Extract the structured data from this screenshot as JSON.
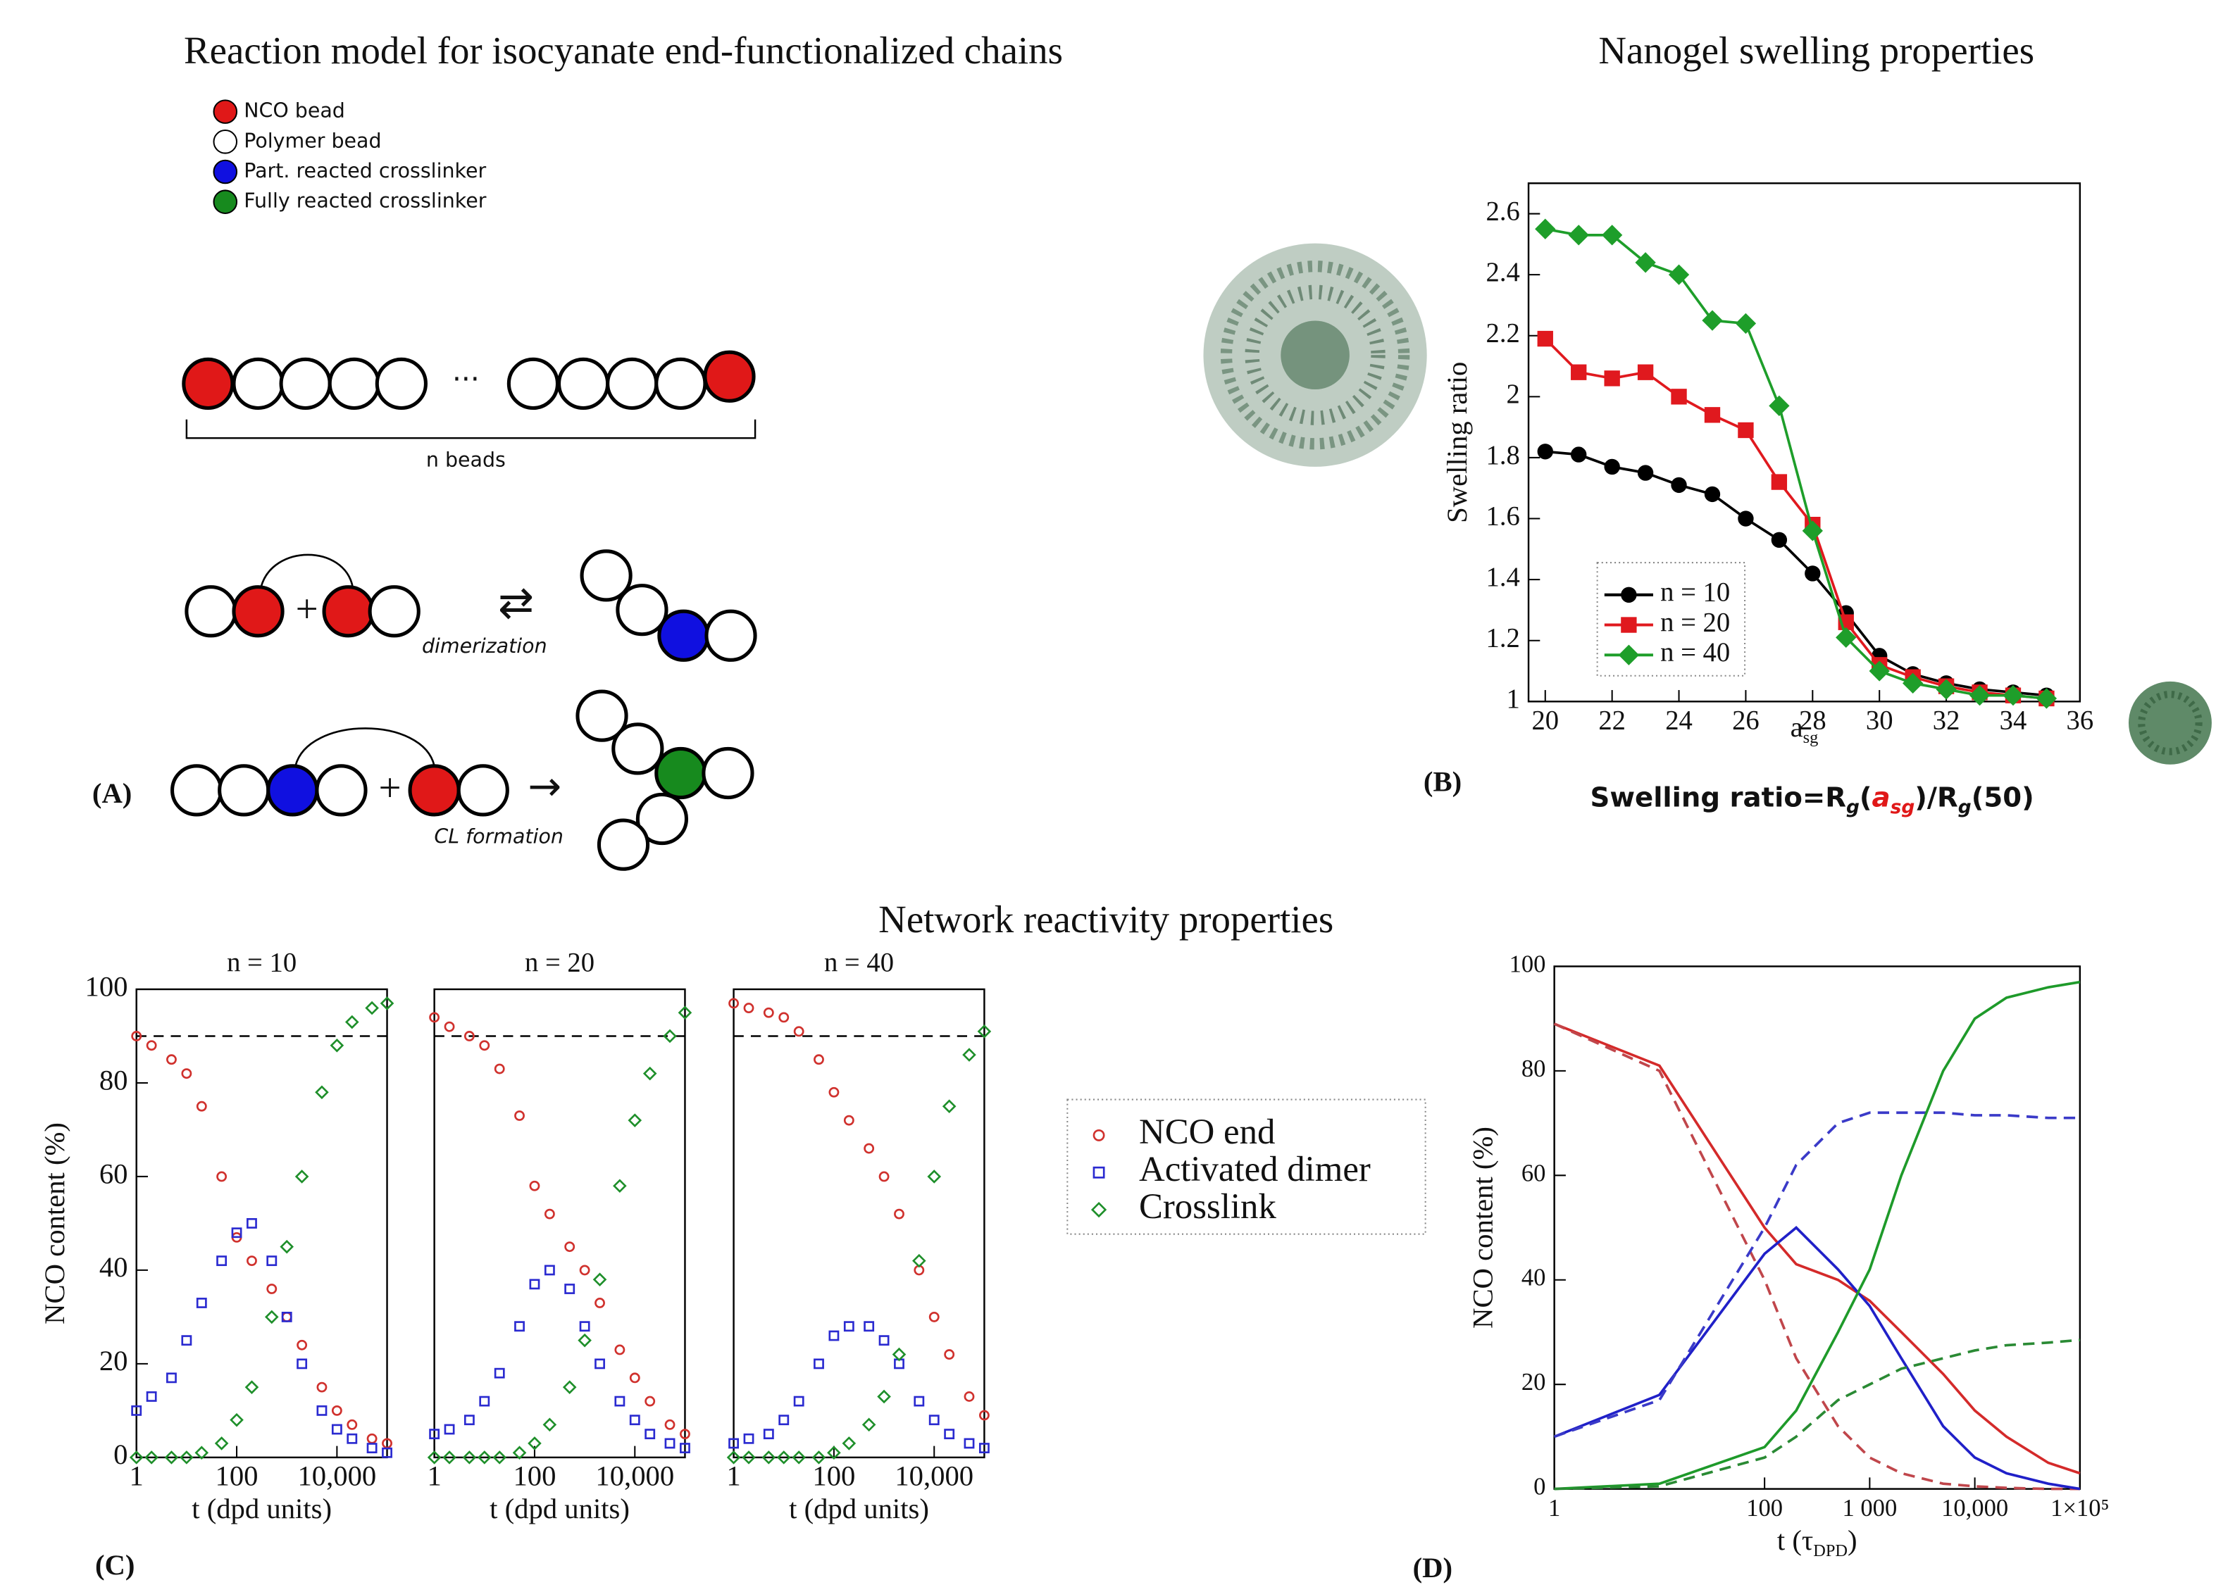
{
  "panel_a": {
    "title": "Reaction model for isocyanate end-functionalized chains",
    "legend": [
      "NCO bead",
      "Polymer bead",
      "Part. reacted crosslinker",
      "Fully reacted crosslinker"
    ],
    "ellipsis": "···",
    "chain_label": "n beads",
    "reaction_1": "dimerization",
    "reaction_2": "CL formation",
    "plus": "+",
    "equilibrium": "⇄",
    "arrow": "→",
    "label": "(A)"
  },
  "panel_b": {
    "title": "Nanogel swelling properties",
    "label": "(B)",
    "formula": [
      "Swelling ratio=R",
      "g",
      "(",
      "a",
      "sg",
      ")/R",
      "g",
      "(50)"
    ]
  },
  "panel_c": {
    "title": "Network reactivity properties",
    "label": "(C)"
  },
  "panel_d": {
    "label": "(D)"
  },
  "chart_data": [
    {
      "type": "line",
      "x": [
        20,
        21,
        22,
        23,
        24,
        25,
        26,
        27,
        28,
        29,
        30,
        31,
        32,
        33,
        34,
        35
      ],
      "series": [
        {
          "name": "n = 10",
          "color": "#000000",
          "marker": "circle",
          "values": [
            1.82,
            1.81,
            1.77,
            1.75,
            1.71,
            1.68,
            1.6,
            1.53,
            1.42,
            1.29,
            1.15,
            1.09,
            1.06,
            1.04,
            1.03,
            1.02
          ]
        },
        {
          "name": "n = 20",
          "color": "#e0191e",
          "marker": "square",
          "values": [
            2.19,
            2.08,
            2.06,
            2.08,
            2.0,
            1.94,
            1.89,
            1.72,
            1.58,
            1.26,
            1.12,
            1.08,
            1.05,
            1.03,
            1.02,
            1.01
          ]
        },
        {
          "name": "n = 40",
          "color": "#1e9e2a",
          "marker": "diamond",
          "values": [
            2.55,
            2.53,
            2.53,
            2.44,
            2.4,
            2.25,
            2.24,
            1.97,
            1.56,
            1.21,
            1.1,
            1.06,
            1.04,
            1.02,
            1.02,
            1.01
          ]
        }
      ],
      "xlim": [
        19.5,
        36
      ],
      "ylim": [
        1,
        2.7
      ],
      "xticks": [
        20,
        22,
        24,
        26,
        28,
        30,
        32,
        34,
        36
      ],
      "yticks": [
        1,
        1.2,
        1.4,
        1.6,
        1.8,
        2,
        2.2,
        2.4,
        2.6
      ],
      "xlabel": [
        "a",
        "sg"
      ],
      "ylabel": "Swelling ratio",
      "legend": "lower left"
    },
    {
      "type": "scatter",
      "title": "n = 10",
      "xscale": "log",
      "hollow": true,
      "reference_line": 90,
      "x": [
        1,
        2,
        5,
        10,
        20,
        50,
        100,
        200,
        500,
        1000,
        2000,
        5000,
        10000,
        20000,
        50000,
        100000
      ],
      "series": [
        {
          "name": "NCO end",
          "color": "#d0312d",
          "marker": "circle",
          "values": [
            90,
            88,
            85,
            82,
            75,
            60,
            47,
            42,
            36,
            30,
            24,
            15,
            10,
            7,
            4,
            3
          ]
        },
        {
          "name": "Activated dimer",
          "color": "#2a2ad0",
          "marker": "square",
          "values": [
            10,
            13,
            17,
            25,
            33,
            42,
            48,
            50,
            42,
            30,
            20,
            10,
            6,
            4,
            2,
            1
          ]
        },
        {
          "name": "Crosslink",
          "color": "#1e8f2a",
          "marker": "diamond",
          "values": [
            0,
            0,
            0,
            0,
            1,
            3,
            8,
            15,
            30,
            45,
            60,
            78,
            88,
            93,
            96,
            97
          ]
        }
      ],
      "xlim": [
        1,
        100000
      ],
      "ylim": [
        0,
        100
      ],
      "xticks": [
        1,
        100,
        {
          "value": 10000,
          "label": "10,000"
        }
      ],
      "yticks": [
        0,
        20,
        40,
        60,
        80,
        100
      ],
      "xlabel": [
        "t (dpd units)"
      ],
      "ylabel": "NCO content (%)",
      "legend": "right"
    },
    {
      "type": "scatter",
      "title": "n = 20",
      "xscale": "log",
      "hollow": true,
      "reference_line": 90,
      "x": [
        1,
        2,
        5,
        10,
        20,
        50,
        100,
        200,
        500,
        1000,
        2000,
        5000,
        10000,
        20000,
        50000,
        100000
      ],
      "series": [
        {
          "color": "#d0312d",
          "marker": "circle",
          "values": [
            94,
            92,
            90,
            88,
            83,
            73,
            58,
            52,
            45,
            40,
            33,
            23,
            17,
            12,
            7,
            5
          ]
        },
        {
          "color": "#2a2ad0",
          "marker": "square",
          "values": [
            5,
            6,
            8,
            12,
            18,
            28,
            37,
            40,
            36,
            28,
            20,
            12,
            8,
            5,
            3,
            2
          ]
        },
        {
          "color": "#1e8f2a",
          "marker": "diamond",
          "values": [
            0,
            0,
            0,
            0,
            0,
            1,
            3,
            7,
            15,
            25,
            38,
            58,
            72,
            82,
            90,
            95
          ]
        }
      ],
      "xlim": [
        1,
        100000
      ],
      "ylim": [
        0,
        100
      ],
      "xticks": [
        1,
        100,
        {
          "value": 10000,
          "label": "10,000"
        }
      ],
      "xlabel": [
        "t (dpd units)"
      ]
    },
    {
      "type": "scatter",
      "title": "n = 40",
      "xscale": "log",
      "hollow": true,
      "reference_line": 90,
      "x": [
        1,
        2,
        5,
        10,
        20,
        50,
        100,
        200,
        500,
        1000,
        2000,
        5000,
        10000,
        20000,
        50000,
        100000
      ],
      "series": [
        {
          "color": "#d0312d",
          "marker": "circle",
          "values": [
            97,
            96,
            95,
            94,
            91,
            85,
            78,
            72,
            66,
            60,
            52,
            40,
            30,
            22,
            13,
            9
          ]
        },
        {
          "color": "#2a2ad0",
          "marker": "square",
          "values": [
            3,
            4,
            5,
            8,
            12,
            20,
            26,
            28,
            28,
            25,
            20,
            12,
            8,
            5,
            3,
            2
          ]
        },
        {
          "color": "#1e8f2a",
          "marker": "diamond",
          "values": [
            0,
            0,
            0,
            0,
            0,
            0,
            1,
            3,
            7,
            13,
            22,
            42,
            60,
            75,
            86,
            91
          ]
        }
      ],
      "xlim": [
        1,
        100000
      ],
      "ylim": [
        0,
        100
      ],
      "xticks": [
        1,
        100,
        {
          "value": 10000,
          "label": "10,000"
        }
      ],
      "xlabel": [
        "t (dpd units)"
      ]
    },
    {
      "type": "line",
      "xscale": "log",
      "x": [
        1,
        10,
        100,
        200,
        500,
        1000,
        2000,
        5000,
        10000,
        20000,
        50000,
        100000
      ],
      "series": [
        {
          "color": "#d42a2a",
          "values": [
            89,
            81,
            50,
            43,
            40,
            36,
            30,
            22,
            15,
            10,
            5,
            3
          ]
        },
        {
          "color": "#c0464b",
          "dashed": true,
          "values": [
            89,
            80,
            40,
            25,
            12,
            6,
            3,
            1,
            0.5,
            0.2,
            0,
            0
          ]
        },
        {
          "color": "#2020c8",
          "values": [
            10,
            18,
            45,
            50,
            42,
            35,
            25,
            12,
            6,
            3,
            1,
            0
          ]
        },
        {
          "color": "#3a3ac8",
          "dashed": true,
          "values": [
            10,
            17,
            50,
            62,
            70,
            72,
            72,
            72,
            71.5,
            71.5,
            71,
            71
          ]
        },
        {
          "color": "#1e9a2a",
          "values": [
            0,
            1,
            8,
            15,
            30,
            42,
            60,
            80,
            90,
            94,
            96,
            97
          ]
        },
        {
          "color": "#2a8a34",
          "dashed": true,
          "values": [
            0,
            0.5,
            6,
            10,
            17,
            20,
            23,
            25,
            26.5,
            27.5,
            28,
            28.5
          ]
        }
      ],
      "xlim": [
        1,
        100000
      ],
      "ylim": [
        0,
        100
      ],
      "xticks": [
        1,
        100,
        {
          "value": 1000,
          "label": "1 000"
        },
        {
          "value": 10000,
          "label": "10,000"
        },
        {
          "value": 100000,
          "label": "1×10⁵"
        }
      ],
      "yticks": [
        0,
        20,
        40,
        60,
        80,
        100
      ],
      "xlabel": [
        "t (τ",
        "DPD",
        ")"
      ],
      "ylabel": "NCO content (%)"
    }
  ]
}
